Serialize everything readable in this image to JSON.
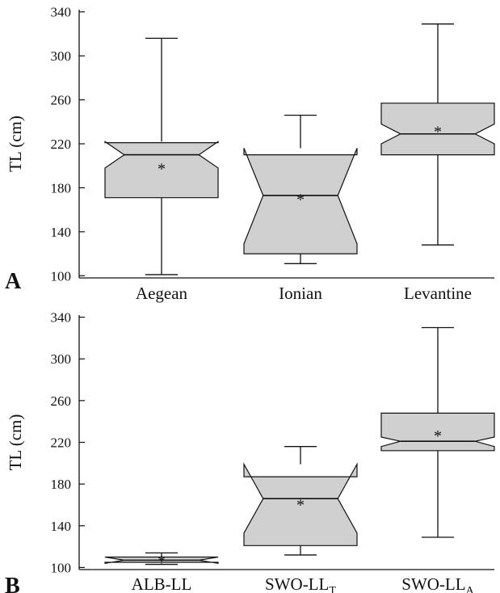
{
  "chart_data": [
    {
      "type": "boxplot",
      "panel_label": "A",
      "ylabel": "TL (cm)",
      "ylim": [
        98,
        342
      ],
      "yticks": [
        100,
        140,
        180,
        220,
        260,
        300,
        340
      ],
      "ytick_labels": [
        "100",
        "140",
        "180",
        "220",
        "260",
        "300",
        "340"
      ],
      "grid": false,
      "box_color": "#d0d0d0",
      "categories": [
        "Aegean",
        "Ionian",
        "Levantine"
      ],
      "boxes": [
        {
          "category": "Aegean",
          "whisker_low": 101,
          "q1": 171,
          "median": 210,
          "q3": 221,
          "whisker_high": 316,
          "notch_low": 198,
          "notch_high": 222,
          "mean": 199
        },
        {
          "category": "Ionian",
          "whisker_low": 111,
          "q1": 120,
          "median": 173,
          "q3": 210,
          "whisker_high": 246,
          "notch_low": 129,
          "notch_high": 216,
          "mean": 171
        },
        {
          "category": "Levantine",
          "whisker_low": 128,
          "q1": 210,
          "median": 229,
          "q3": 257,
          "whisker_high": 329,
          "notch_low": 220,
          "notch_high": 238,
          "mean": 233
        }
      ]
    },
    {
      "type": "boxplot",
      "panel_label": "B",
      "ylabel": "TL (cm)",
      "ylim": [
        98,
        342
      ],
      "yticks": [
        100,
        140,
        180,
        220,
        260,
        300,
        340
      ],
      "ytick_labels": [
        "100",
        "140",
        "180",
        "220",
        "260",
        "300",
        "340"
      ],
      "grid": false,
      "box_color": "#d0d0d0",
      "categories": [
        {
          "base": "ALB-LL",
          "sub": ""
        },
        {
          "base": "SWO-LL",
          "sub": "T"
        },
        {
          "base": "SWO-LL",
          "sub": "A"
        }
      ],
      "boxes": [
        {
          "category": "ALB-LL",
          "whisker_low": 103,
          "q1": 105,
          "median": 107,
          "q3": 110,
          "whisker_high": 114,
          "notch_low": 104,
          "notch_high": 110,
          "mean": 108
        },
        {
          "category": "SWO-LLT",
          "whisker_low": 112,
          "q1": 121,
          "median": 166,
          "q3": 187,
          "whisker_high": 216,
          "notch_low": 133,
          "notch_high": 199,
          "mean": 162
        },
        {
          "category": "SWO-LLA",
          "whisker_low": 129,
          "q1": 212,
          "median": 221,
          "q3": 248,
          "whisker_high": 330,
          "notch_low": 216,
          "notch_high": 225,
          "mean": 228
        }
      ]
    }
  ]
}
